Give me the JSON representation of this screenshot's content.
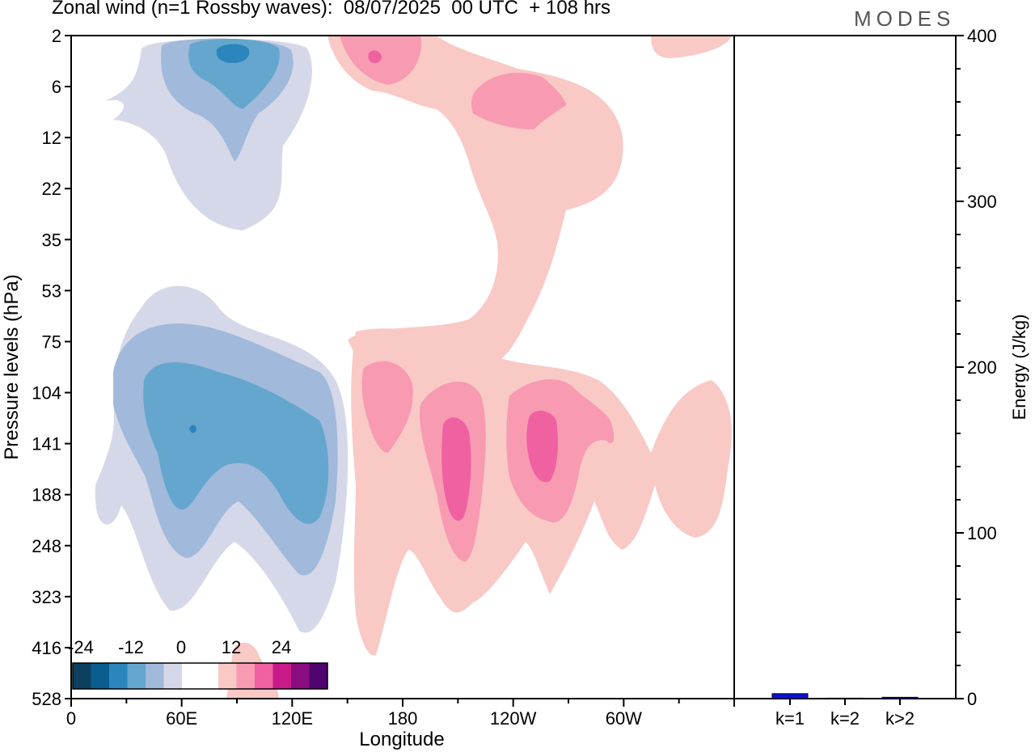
{
  "title": "Zonal wind (n=1 Rossby waves):  08/07/2025  00 UTC  + 108 hrs",
  "logo": "MODES",
  "colors": {
    "neg": [
      "#0d3f5f",
      "#0a5e8f",
      "#2b86bd",
      "#65a6ce",
      "#a1b9da",
      "#d5d8e8"
    ],
    "white": "#ffffff",
    "pos": [
      "#f9c9c5",
      "#f79ab2",
      "#ef61a0",
      "#c91b88",
      "#8a0e80",
      "#4f0470"
    ],
    "bar": "#0a10d8"
  },
  "chart_data": [
    {
      "type": "heatmap",
      "title": "Zonal wind (n=1 Rossby waves):  08/07/2025  00 UTC  + 108 hrs",
      "xlabel": "Longitude",
      "ylabel": "Pressure levels (hPa)",
      "x_ticks": [
        "0",
        "60E",
        "120E",
        "180",
        "120W",
        "60W"
      ],
      "y_ticks": [
        "2",
        "6",
        "12",
        "22",
        "35",
        "53",
        "75",
        "104",
        "141",
        "188",
        "248",
        "323",
        "416",
        "528"
      ],
      "colorbar_labels": [
        "-24",
        "-12",
        "0",
        "12",
        "24"
      ],
      "contour_levels": [
        -24,
        -20,
        -16,
        -12,
        -8,
        -4,
        0,
        4,
        8,
        12,
        16,
        20,
        24
      ],
      "features": [
        {
          "sign": "negative",
          "lon": 87,
          "level": 4,
          "peak": -16
        },
        {
          "sign": "negative",
          "lon": 68,
          "level": 141,
          "peak": -16
        },
        {
          "sign": "positive",
          "lon": 165,
          "level": 4,
          "peak": 12
        },
        {
          "sign": "positive",
          "lon": 255,
          "level": 8,
          "peak": 8
        },
        {
          "sign": "positive",
          "lon": 170,
          "level": 110,
          "peak": 8
        },
        {
          "sign": "positive",
          "lon": 210,
          "level": 150,
          "peak": 12
        },
        {
          "sign": "positive",
          "lon": 255,
          "level": 140,
          "peak": 12
        },
        {
          "sign": "positive",
          "lon": 350,
          "level": 110,
          "peak": 4
        }
      ]
    },
    {
      "type": "bar",
      "ylabel": "Energy (J/kg)",
      "categories": [
        "k=1",
        "k=2",
        "k>2"
      ],
      "values": [
        3,
        0.3,
        0.8
      ],
      "ylim": [
        0,
        400
      ],
      "y_ticks": [
        "0",
        "100",
        "200",
        "300",
        "400"
      ]
    }
  ]
}
